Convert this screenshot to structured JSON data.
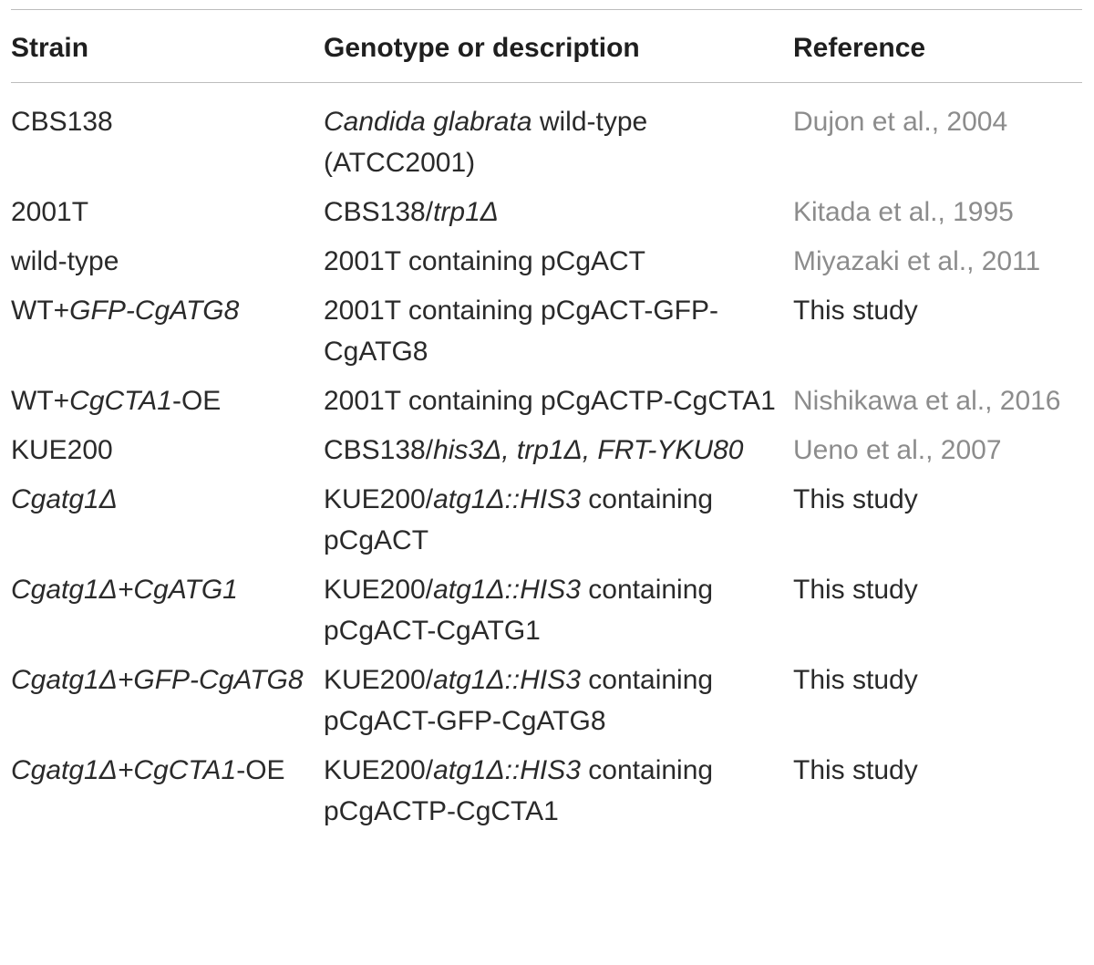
{
  "header": {
    "strain": "Strain",
    "genotype": "Genotype or description",
    "reference": "Reference"
  },
  "rows": [
    {
      "strain": [
        {
          "t": "CBS138",
          "i": false
        }
      ],
      "genotype": [
        {
          "t": "Candida glabrata",
          "i": true
        },
        {
          "t": " wild-type (ATCC2001)",
          "i": false
        }
      ],
      "reference": "Dujon et al., 2004",
      "ref_link": true
    },
    {
      "strain": [
        {
          "t": "2001T",
          "i": false
        }
      ],
      "genotype": [
        {
          "t": "CBS138/",
          "i": false
        },
        {
          "t": "trp1Δ",
          "i": true
        }
      ],
      "reference": "Kitada et al., 1995",
      "ref_link": true
    },
    {
      "strain": [
        {
          "t": "wild-type",
          "i": false
        }
      ],
      "genotype": [
        {
          "t": "2001T containing pCgACT",
          "i": false
        }
      ],
      "reference": "Miyazaki et al., 2011",
      "ref_link": true
    },
    {
      "strain": [
        {
          "t": "WT+",
          "i": false
        },
        {
          "t": "GFP-CgATG8",
          "i": true
        }
      ],
      "genotype": [
        {
          "t": "2001T containing pCgACT-GFP-CgATG8",
          "i": false
        }
      ],
      "reference": "This study",
      "ref_link": false
    },
    {
      "strain": [
        {
          "t": "WT+",
          "i": false
        },
        {
          "t": "CgCTA1",
          "i": true
        },
        {
          "t": "-OE",
          "i": false
        }
      ],
      "genotype": [
        {
          "t": "2001T containing pCgACTP-CgCTA1",
          "i": false
        }
      ],
      "reference": "Nishikawa et al., 2016",
      "ref_link": true
    },
    {
      "strain": [
        {
          "t": "KUE200",
          "i": false
        }
      ],
      "genotype": [
        {
          "t": "CBS138/",
          "i": false
        },
        {
          "t": "his3Δ, trp1Δ, FRT-YKU80",
          "i": true
        }
      ],
      "reference": "Ueno et al., 2007",
      "ref_link": true
    },
    {
      "strain": [
        {
          "t": "Cgatg1Δ",
          "i": true
        }
      ],
      "genotype": [
        {
          "t": "KUE200/",
          "i": false
        },
        {
          "t": "atg1Δ::HIS3",
          "i": true
        },
        {
          "t": " containing pCgACT",
          "i": false
        }
      ],
      "reference": "This study",
      "ref_link": false
    },
    {
      "strain": [
        {
          "t": "Cgatg1Δ+CgATG1",
          "i": true
        }
      ],
      "genotype": [
        {
          "t": "KUE200/",
          "i": false
        },
        {
          "t": "atg1Δ::HIS3",
          "i": true
        },
        {
          "t": " containing pCgACT-CgATG1",
          "i": false
        }
      ],
      "reference": "This study",
      "ref_link": false
    },
    {
      "strain": [
        {
          "t": "Cgatg1Δ+GFP-CgATG8",
          "i": true
        }
      ],
      "genotype": [
        {
          "t": "KUE200/",
          "i": false
        },
        {
          "t": "atg1Δ::HIS3",
          "i": true
        },
        {
          "t": " containing pCgACT-GFP-CgATG8",
          "i": false
        }
      ],
      "reference": "This study",
      "ref_link": false
    },
    {
      "strain": [
        {
          "t": "Cgatg1Δ+CgCTA1",
          "i": true
        },
        {
          "t": "-OE",
          "i": false
        }
      ],
      "genotype": [
        {
          "t": "KUE200/",
          "i": false
        },
        {
          "t": "atg1Δ::HIS3",
          "i": true
        },
        {
          "t": " containing pCgACTP-CgCTA1",
          "i": false
        }
      ],
      "reference": "This study",
      "ref_link": false
    }
  ]
}
